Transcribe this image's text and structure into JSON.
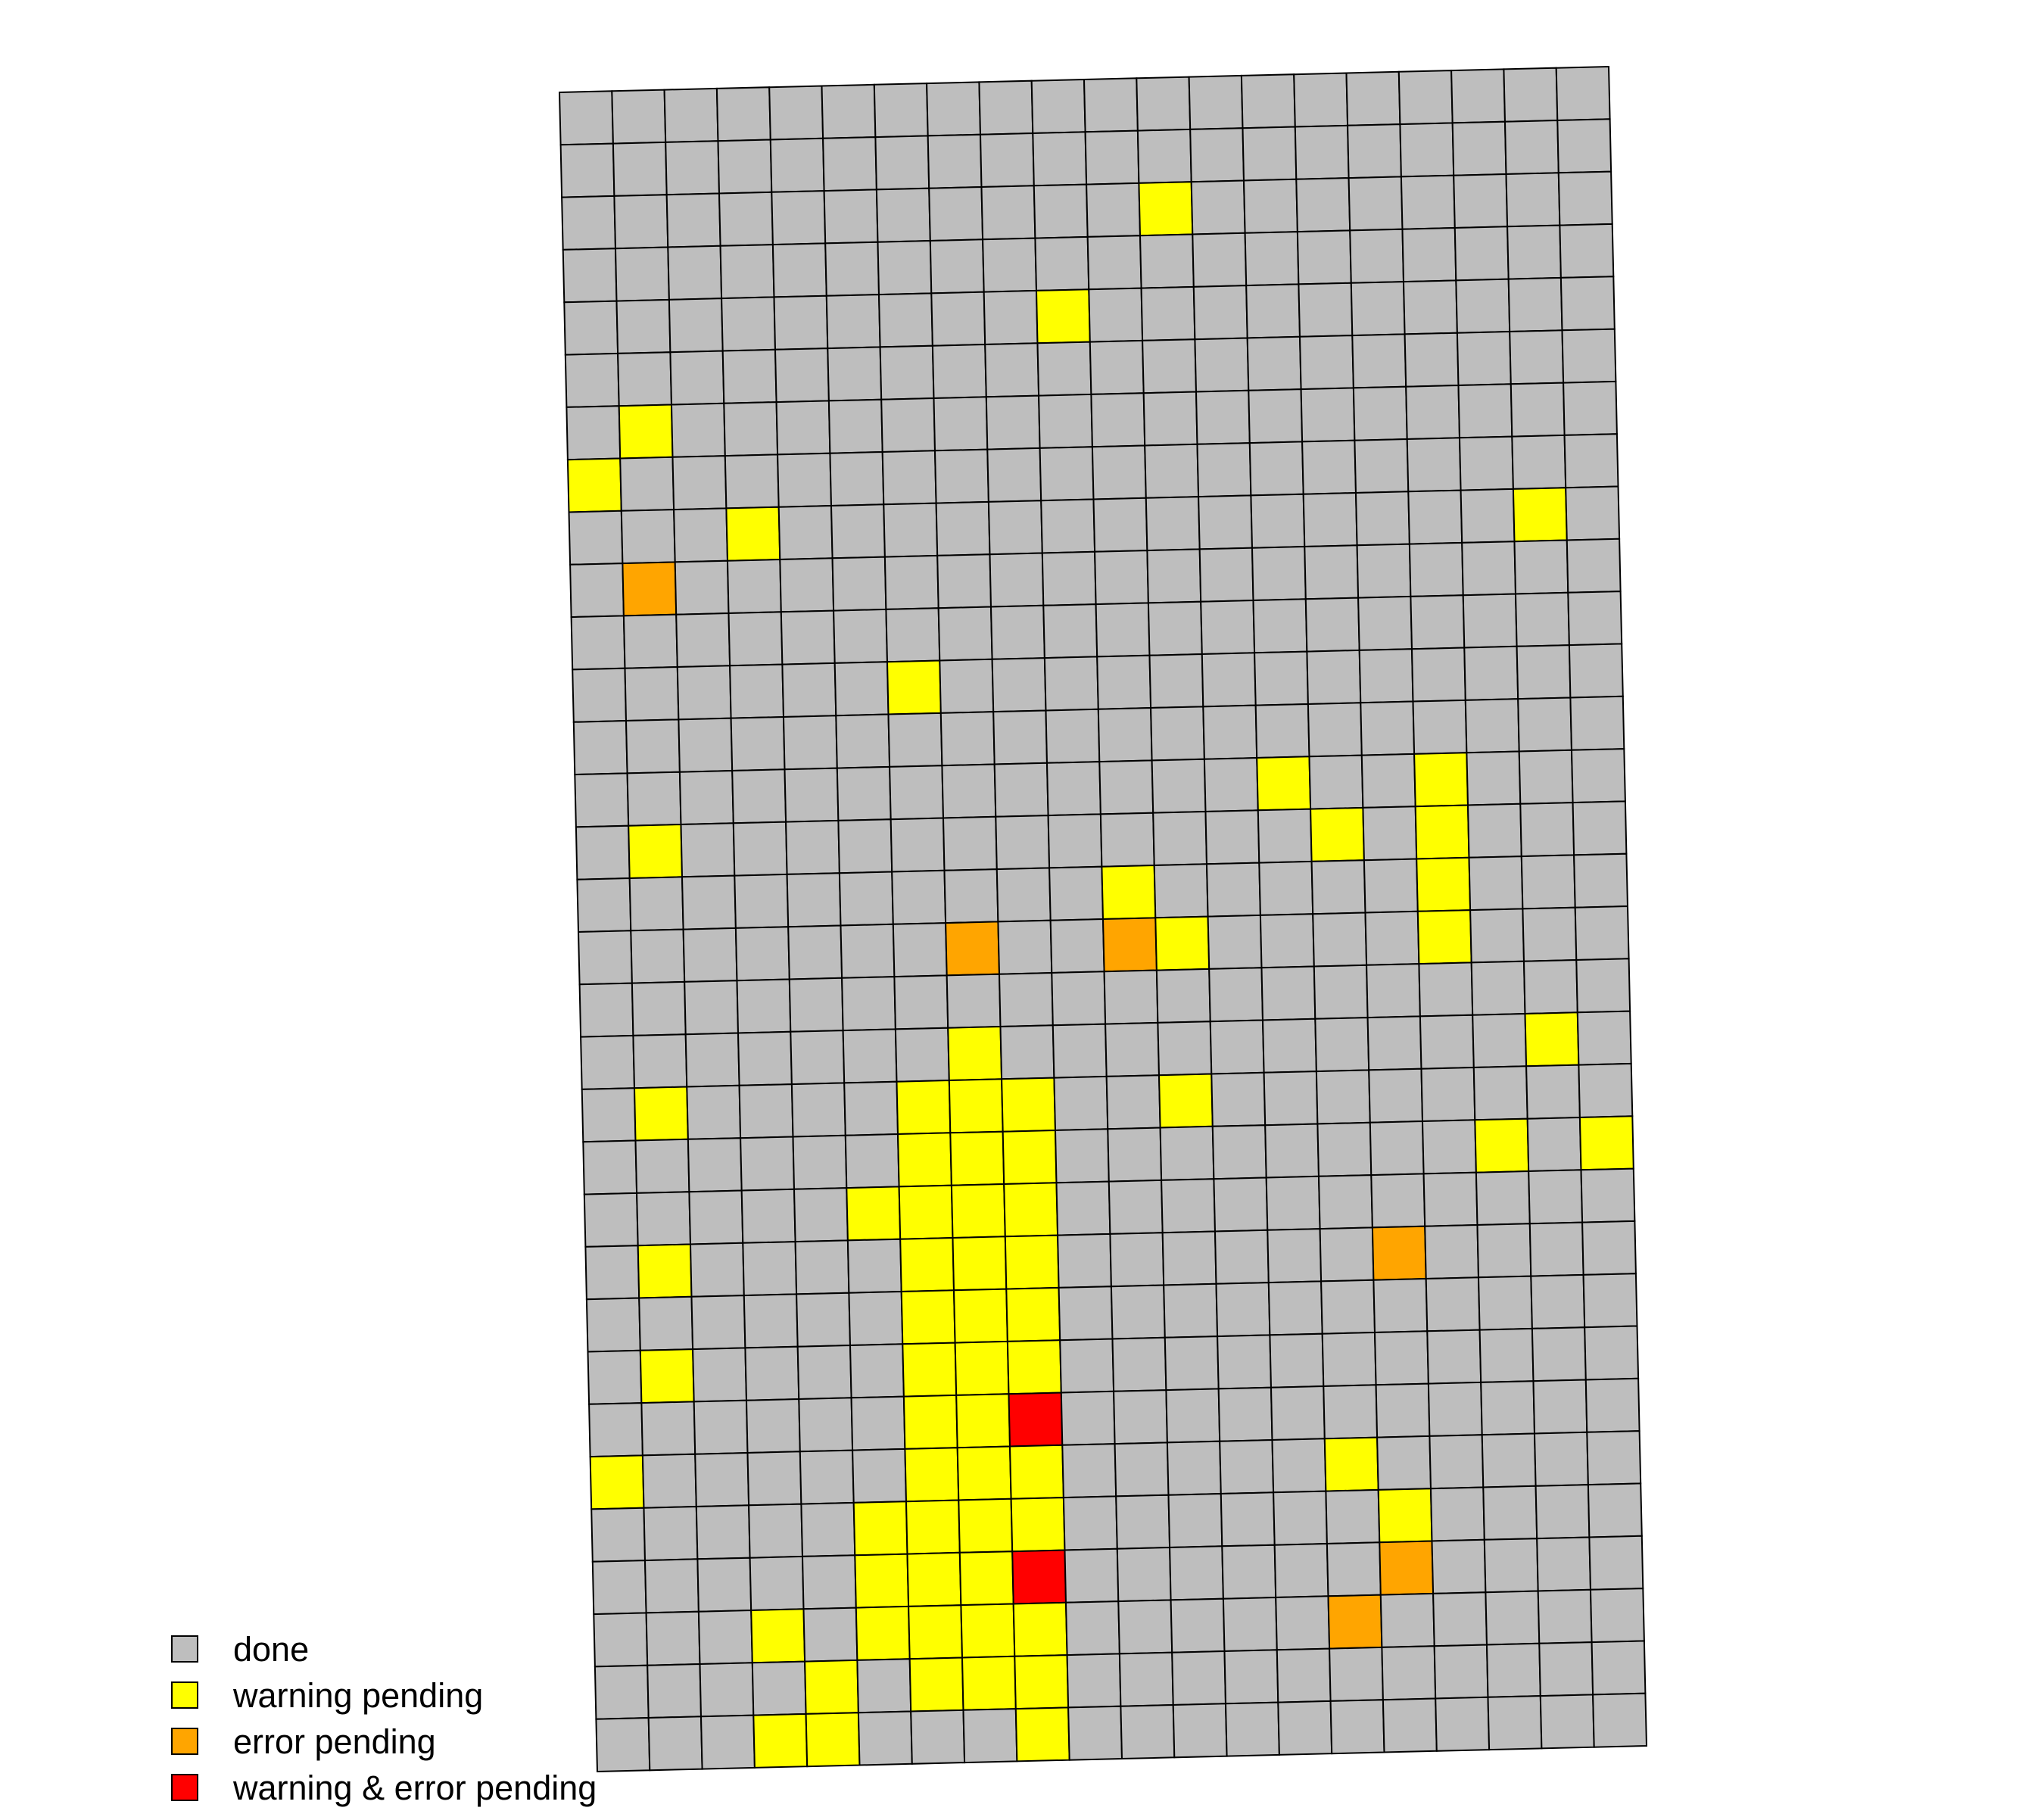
{
  "chart_data": {
    "type": "heatmap",
    "title": "",
    "rows": 32,
    "cols": 20,
    "grid": true,
    "legend": {
      "placement": "bottom-left",
      "entries": [
        {
          "key": "done",
          "label": "done",
          "color": "#bebebe"
        },
        {
          "key": "warning",
          "label": "warning pending",
          "color": "#ffff00"
        },
        {
          "key": "error",
          "label": "error pending",
          "color": "#ffa500"
        },
        {
          "key": "both",
          "label": "warning & error pending",
          "color": "#ff0000"
        }
      ]
    },
    "default_status": "done",
    "cells": [
      {
        "row": 2,
        "col": 11,
        "status": "warning"
      },
      {
        "row": 4,
        "col": 9,
        "status": "warning"
      },
      {
        "row": 6,
        "col": 1,
        "status": "warning"
      },
      {
        "row": 7,
        "col": 0,
        "status": "warning"
      },
      {
        "row": 8,
        "col": 3,
        "status": "warning"
      },
      {
        "row": 8,
        "col": 18,
        "status": "warning"
      },
      {
        "row": 9,
        "col": 1,
        "status": "error"
      },
      {
        "row": 11,
        "col": 6,
        "status": "warning"
      },
      {
        "row": 13,
        "col": 13,
        "status": "warning"
      },
      {
        "row": 13,
        "col": 16,
        "status": "warning"
      },
      {
        "row": 14,
        "col": 1,
        "status": "warning"
      },
      {
        "row": 14,
        "col": 14,
        "status": "warning"
      },
      {
        "row": 14,
        "col": 16,
        "status": "warning"
      },
      {
        "row": 15,
        "col": 10,
        "status": "warning"
      },
      {
        "row": 15,
        "col": 16,
        "status": "warning"
      },
      {
        "row": 16,
        "col": 7,
        "status": "error"
      },
      {
        "row": 16,
        "col": 10,
        "status": "error"
      },
      {
        "row": 16,
        "col": 11,
        "status": "warning"
      },
      {
        "row": 16,
        "col": 16,
        "status": "warning"
      },
      {
        "row": 18,
        "col": 7,
        "status": "warning"
      },
      {
        "row": 18,
        "col": 18,
        "status": "warning"
      },
      {
        "row": 19,
        "col": 1,
        "status": "warning"
      },
      {
        "row": 19,
        "col": 6,
        "status": "warning"
      },
      {
        "row": 19,
        "col": 7,
        "status": "warning"
      },
      {
        "row": 19,
        "col": 8,
        "status": "warning"
      },
      {
        "row": 19,
        "col": 11,
        "status": "warning"
      },
      {
        "row": 20,
        "col": 6,
        "status": "warning"
      },
      {
        "row": 20,
        "col": 7,
        "status": "warning"
      },
      {
        "row": 20,
        "col": 8,
        "status": "warning"
      },
      {
        "row": 20,
        "col": 17,
        "status": "warning"
      },
      {
        "row": 20,
        "col": 19,
        "status": "warning"
      },
      {
        "row": 21,
        "col": 5,
        "status": "warning"
      },
      {
        "row": 21,
        "col": 6,
        "status": "warning"
      },
      {
        "row": 21,
        "col": 7,
        "status": "warning"
      },
      {
        "row": 21,
        "col": 8,
        "status": "warning"
      },
      {
        "row": 22,
        "col": 1,
        "status": "warning"
      },
      {
        "row": 22,
        "col": 6,
        "status": "warning"
      },
      {
        "row": 22,
        "col": 7,
        "status": "warning"
      },
      {
        "row": 22,
        "col": 8,
        "status": "warning"
      },
      {
        "row": 22,
        "col": 15,
        "status": "error"
      },
      {
        "row": 23,
        "col": 6,
        "status": "warning"
      },
      {
        "row": 23,
        "col": 7,
        "status": "warning"
      },
      {
        "row": 23,
        "col": 8,
        "status": "warning"
      },
      {
        "row": 24,
        "col": 1,
        "status": "warning"
      },
      {
        "row": 24,
        "col": 6,
        "status": "warning"
      },
      {
        "row": 24,
        "col": 7,
        "status": "warning"
      },
      {
        "row": 24,
        "col": 8,
        "status": "warning"
      },
      {
        "row": 25,
        "col": 6,
        "status": "warning"
      },
      {
        "row": 25,
        "col": 7,
        "status": "warning"
      },
      {
        "row": 25,
        "col": 8,
        "status": "both"
      },
      {
        "row": 26,
        "col": 0,
        "status": "warning"
      },
      {
        "row": 26,
        "col": 6,
        "status": "warning"
      },
      {
        "row": 26,
        "col": 7,
        "status": "warning"
      },
      {
        "row": 26,
        "col": 8,
        "status": "warning"
      },
      {
        "row": 26,
        "col": 14,
        "status": "warning"
      },
      {
        "row": 27,
        "col": 5,
        "status": "warning"
      },
      {
        "row": 27,
        "col": 6,
        "status": "warning"
      },
      {
        "row": 27,
        "col": 7,
        "status": "warning"
      },
      {
        "row": 27,
        "col": 8,
        "status": "warning"
      },
      {
        "row": 27,
        "col": 15,
        "status": "warning"
      },
      {
        "row": 28,
        "col": 5,
        "status": "warning"
      },
      {
        "row": 28,
        "col": 6,
        "status": "warning"
      },
      {
        "row": 28,
        "col": 7,
        "status": "warning"
      },
      {
        "row": 28,
        "col": 8,
        "status": "both"
      },
      {
        "row": 28,
        "col": 15,
        "status": "error"
      },
      {
        "row": 29,
        "col": 3,
        "status": "warning"
      },
      {
        "row": 29,
        "col": 5,
        "status": "warning"
      },
      {
        "row": 29,
        "col": 6,
        "status": "warning"
      },
      {
        "row": 29,
        "col": 7,
        "status": "warning"
      },
      {
        "row": 29,
        "col": 8,
        "status": "warning"
      },
      {
        "row": 29,
        "col": 14,
        "status": "error"
      },
      {
        "row": 30,
        "col": 4,
        "status": "warning"
      },
      {
        "row": 30,
        "col": 6,
        "status": "warning"
      },
      {
        "row": 30,
        "col": 7,
        "status": "warning"
      },
      {
        "row": 30,
        "col": 8,
        "status": "warning"
      },
      {
        "row": 31,
        "col": 3,
        "status": "warning"
      },
      {
        "row": 31,
        "col": 4,
        "status": "warning"
      },
      {
        "row": 31,
        "col": 8,
        "status": "warning"
      }
    ]
  }
}
